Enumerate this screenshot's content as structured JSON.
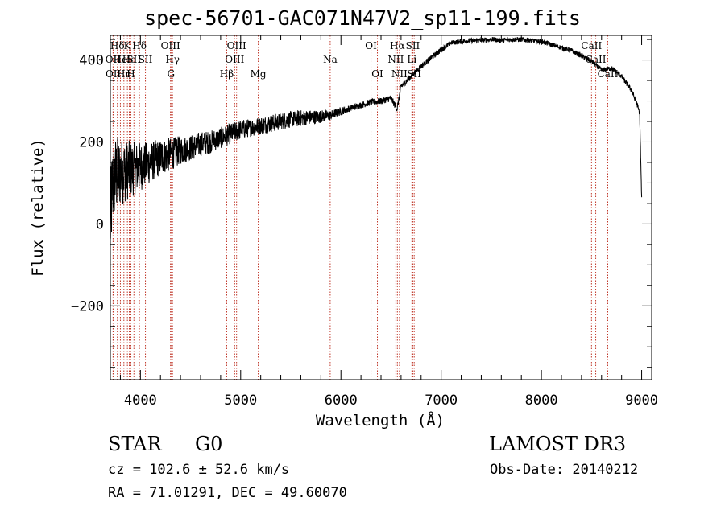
{
  "chart_data": {
    "type": "line",
    "title": "spec-56701-GAC071N47V2_sp11-199.fits",
    "xlabel": "Wavelength (Å)",
    "ylabel": "Flux (relative)",
    "xlim": [
      3700,
      9100
    ],
    "ylim": [
      -380,
      460
    ],
    "x_ticks": [
      4000,
      5000,
      6000,
      7000,
      8000,
      9000
    ],
    "y_ticks": [
      -200,
      0,
      200,
      400
    ],
    "x_minor_step": 200,
    "y_minor_step": 50,
    "x_tick_labels": [
      "4000",
      "5000",
      "6000",
      "7000",
      "8000",
      "9000"
    ],
    "y_tick_labels": [
      "−200",
      "0",
      "200",
      "400"
    ],
    "grid": false,
    "series": [
      {
        "name": "flux",
        "color": "#000000",
        "x": [
          3700,
          3720,
          3740,
          3760,
          3780,
          3800,
          3830,
          3860,
          3900,
          3950,
          4000,
          4050,
          4100,
          4150,
          4200,
          4300,
          4400,
          4500,
          4600,
          4700,
          4800,
          4900,
          5000,
          5100,
          5200,
          5300,
          5400,
          5500,
          5600,
          5700,
          5800,
          5900,
          6000,
          6100,
          6200,
          6300,
          6400,
          6500,
          6560,
          6600,
          6700,
          6800,
          6900,
          7000,
          7100,
          7200,
          7300,
          7400,
          7500,
          7600,
          7700,
          7800,
          7900,
          8000,
          8100,
          8200,
          8300,
          8400,
          8500,
          8600,
          8700,
          8800,
          8900,
          8950,
          8980,
          9000
        ],
        "y": [
          0,
          90,
          110,
          120,
          120,
          125,
          128,
          130,
          133,
          136,
          140,
          145,
          150,
          157,
          163,
          170,
          180,
          185,
          195,
          200,
          210,
          220,
          230,
          235,
          240,
          245,
          250,
          255,
          258,
          260,
          262,
          265,
          275,
          283,
          290,
          297,
          300,
          307,
          280,
          335,
          360,
          385,
          405,
          425,
          442,
          445,
          447,
          448,
          450,
          448,
          450,
          450,
          447,
          445,
          437,
          430,
          423,
          410,
          397,
          375,
          380,
          360,
          325,
          295,
          270,
          60
        ],
        "noise": [
          115,
          110,
          100,
          100,
          95,
          85,
          80,
          75,
          70,
          65,
          60,
          55,
          50,
          48,
          45,
          40,
          35,
          32,
          30,
          28,
          26,
          25,
          24,
          22,
          22,
          22,
          21,
          20,
          20,
          18,
          16,
          12,
          10,
          8,
          8,
          8,
          8,
          8,
          8,
          8,
          7,
          7,
          7,
          7,
          6,
          6,
          6,
          6,
          6,
          6,
          6,
          6,
          6,
          6,
          6,
          6,
          6,
          6,
          6,
          6,
          6,
          6,
          6,
          6,
          6,
          6
        ]
      }
    ],
    "lines": [
      {
        "label": "Hδ",
        "x": 3770,
        "row": 1
      },
      {
        "label": "OII",
        "x": 3727,
        "row": 2
      },
      {
        "label": "OII",
        "x": 3729,
        "row": 3
      },
      {
        "label": "He",
        "x": 3800,
        "row": 2
      },
      {
        "label": "Hη",
        "x": 3835,
        "row": 3
      },
      {
        "label": "K",
        "x": 3870,
        "row": 1
      },
      {
        "label": "He",
        "x": 3889,
        "row": 2
      },
      {
        "label": "H",
        "x": 3905,
        "row": 3
      },
      {
        "label": "SII",
        "x": 3935,
        "row": 2
      },
      {
        "label": "Hδ",
        "x": 3990,
        "row": 1
      },
      {
        "label": "SII",
        "x": 4050,
        "row": 2
      },
      {
        "label": "OIII",
        "x": 4300,
        "row": 1
      },
      {
        "label": "Hγ",
        "x": 4320,
        "row": 2
      },
      {
        "label": "G",
        "x": 4305,
        "row": 3
      },
      {
        "label": "Hβ",
        "x": 4861,
        "row": 3
      },
      {
        "label": "OIII",
        "x": 4959,
        "row": 1
      },
      {
        "label": "OIII",
        "x": 4940,
        "row": 2
      },
      {
        "label": "Mg",
        "x": 5175,
        "row": 3
      },
      {
        "label": "Na",
        "x": 5893,
        "row": 2
      },
      {
        "label": "OI",
        "x": 6300,
        "row": 1
      },
      {
        "label": "OI",
        "x": 6364,
        "row": 3
      },
      {
        "label": "Hα",
        "x": 6563,
        "row": 1
      },
      {
        "label": "NII",
        "x": 6548,
        "row": 2
      },
      {
        "label": "NII",
        "x": 6584,
        "row": 3
      },
      {
        "label": "SII",
        "x": 6717,
        "row": 1
      },
      {
        "label": "Li",
        "x": 6708,
        "row": 2
      },
      {
        "label": "SII",
        "x": 6731,
        "row": 3
      },
      {
        "label": "CaII",
        "x": 8500,
        "row": 1
      },
      {
        "label": "CaII",
        "x": 8542,
        "row": 2
      },
      {
        "label": "CaII",
        "x": 8662,
        "row": 3
      }
    ]
  },
  "info": {
    "object_class": "STAR",
    "subclass": "G0",
    "survey": "LAMOST DR3",
    "redshift": "cz =  102.6 ± 52.6 km/s",
    "obs_date": "Obs-Date: 20140212",
    "coords": "RA =  71.01291, DEC =  49.60070"
  }
}
